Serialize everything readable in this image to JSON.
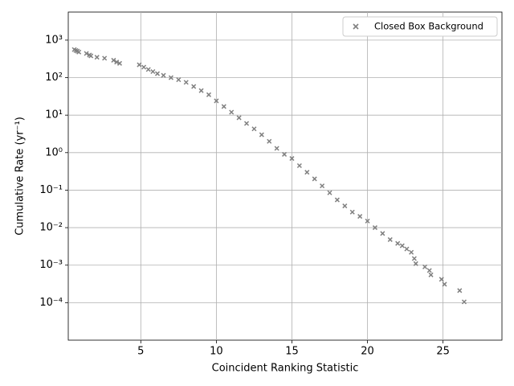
{
  "chart_data": {
    "type": "scatter",
    "x_label": "Coincident Ranking Statistic",
    "y_label": "Cumulative Rate (yr⁻¹)",
    "xlim": [
      0.2,
      28.9
    ],
    "ylim": [
      1e-05,
      5600
    ],
    "xticks": [
      5,
      10,
      15,
      20,
      25
    ],
    "yticks": [
      {
        "value": 0.0001,
        "label": "10⁻⁴"
      },
      {
        "value": 0.001,
        "label": "10⁻³"
      },
      {
        "value": 0.01,
        "label": "10⁻²"
      },
      {
        "value": 0.1,
        "label": "10⁻¹"
      },
      {
        "value": 1,
        "label": "10⁰"
      },
      {
        "value": 10,
        "label": "10¹"
      },
      {
        "value": 100,
        "label": "10²"
      },
      {
        "value": 1000,
        "label": "10³"
      }
    ],
    "y_scale": "log",
    "grid": true,
    "legend": "upper right",
    "series": [
      {
        "name": "Closed Box Background",
        "color": "#808080",
        "x": [
          0.6,
          0.7,
          0.8,
          0.9,
          1.4,
          1.6,
          1.7,
          2.1,
          2.6,
          3.2,
          3.4,
          3.6,
          4.9,
          5.2,
          5.5,
          5.8,
          6.1,
          6.5,
          7,
          7.5,
          8,
          8.5,
          9,
          9.5,
          10,
          10.5,
          11,
          11.5,
          12,
          12.5,
          13,
          13.5,
          14,
          14.5,
          15,
          15.5,
          16,
          16.5,
          17,
          17.5,
          18,
          18.5,
          19,
          19.5,
          20,
          20.5,
          21,
          21.5,
          22,
          22.3,
          22.6,
          22.9,
          23.1,
          23.2,
          23.8,
          24.1,
          24.2,
          24.9,
          25.1,
          26.1,
          26.4
        ],
        "values": [
          560,
          530,
          510,
          480,
          440,
          400,
          380,
          350,
          330,
          290,
          260,
          240,
          220,
          190,
          165,
          145,
          128,
          115,
          100,
          88,
          75,
          58,
          45,
          35,
          24,
          17,
          12,
          8.5,
          6,
          4.3,
          3,
          2,
          1.3,
          0.9,
          0.7,
          0.45,
          0.3,
          0.2,
          0.13,
          0.085,
          0.055,
          0.038,
          0.026,
          0.02,
          0.015,
          0.01,
          0.007,
          0.0048,
          0.0038,
          0.0033,
          0.0027,
          0.0022,
          0.0015,
          0.0011,
          0.0009,
          0.00072,
          0.00055,
          0.00042,
          0.00031,
          0.00021,
          0.000105
        ]
      }
    ]
  }
}
